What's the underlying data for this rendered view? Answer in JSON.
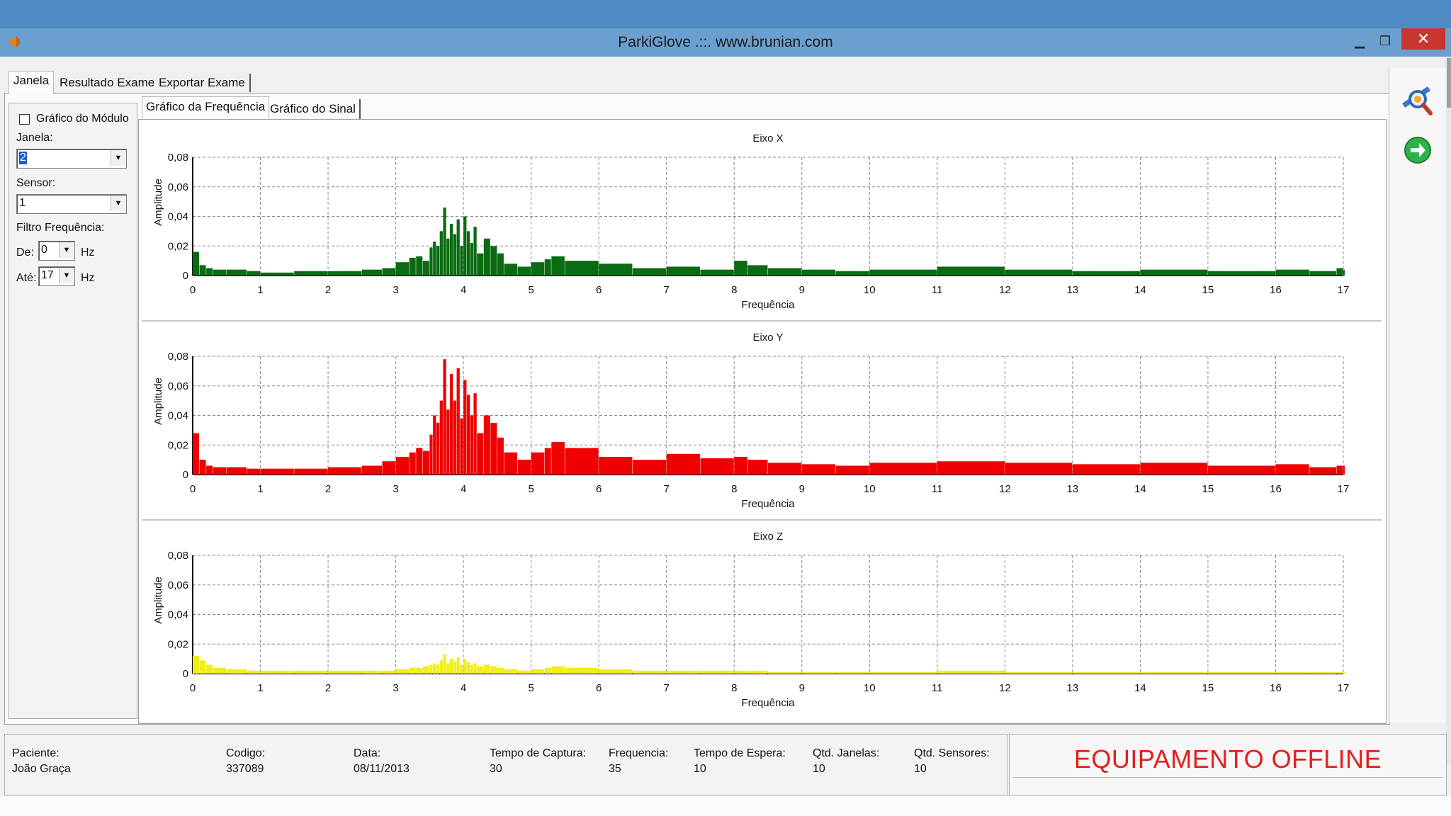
{
  "window": {
    "title": "ParkiGlove .::. www.brunian.com",
    "close_symbol": "✕",
    "min_symbol": "▁",
    "max_symbol": "❐"
  },
  "tabs": [
    {
      "label": "Janela"
    },
    {
      "label": "Resultado Exame"
    },
    {
      "label": "Exportar Exame"
    }
  ],
  "sidebar": {
    "modulo_checkbox_label": "Gráfico do Módulo",
    "janela_label": "Janela:",
    "janela_value": "2",
    "sensor_label": "Sensor:",
    "sensor_value": "1",
    "filtro_label": "Filtro Frequência:",
    "de_label": "De:",
    "de_value": "0",
    "ate_label": "Até:",
    "ate_value": "17",
    "hz_label": "Hz"
  },
  "subtabs": [
    {
      "label": "Gráfico da Frequência"
    },
    {
      "label": "Gráfico do Sinal"
    }
  ],
  "chart_data": [
    {
      "type": "bar",
      "title": "Eixo X",
      "xlabel": "Frequência",
      "ylabel": "Amplitude",
      "color": "#0b6b12",
      "xlim": [
        0,
        17
      ],
      "ylim": [
        0,
        0.08
      ],
      "x_ticks": [
        "0",
        "1",
        "2",
        "3",
        "4",
        "5",
        "6",
        "7",
        "8",
        "9",
        "10",
        "11",
        "12",
        "13",
        "14",
        "15",
        "16",
        "17"
      ],
      "y_ticks": [
        "0",
        "0,02",
        "0,04",
        "0,06",
        "0,08"
      ],
      "grid": true,
      "x": [
        0.0,
        0.1,
        0.2,
        0.3,
        0.5,
        0.8,
        1.0,
        1.5,
        2.0,
        2.5,
        2.8,
        3.0,
        3.2,
        3.3,
        3.4,
        3.5,
        3.55,
        3.6,
        3.65,
        3.7,
        3.75,
        3.8,
        3.85,
        3.9,
        3.95,
        4.0,
        4.05,
        4.1,
        4.15,
        4.2,
        4.3,
        4.4,
        4.5,
        4.6,
        4.8,
        5.0,
        5.2,
        5.3,
        5.5,
        6.0,
        6.5,
        7.0,
        7.5,
        8.0,
        8.2,
        8.5,
        9.0,
        9.5,
        10.0,
        11.0,
        12.0,
        13.0,
        14.0,
        15.0,
        16.0,
        16.5,
        16.9,
        17.0
      ],
      "y": [
        0.016,
        0.007,
        0.005,
        0.004,
        0.004,
        0.003,
        0.002,
        0.003,
        0.003,
        0.004,
        0.005,
        0.009,
        0.012,
        0.013,
        0.01,
        0.019,
        0.023,
        0.02,
        0.03,
        0.046,
        0.025,
        0.035,
        0.028,
        0.038,
        0.02,
        0.04,
        0.03,
        0.022,
        0.033,
        0.015,
        0.025,
        0.02,
        0.015,
        0.008,
        0.006,
        0.009,
        0.011,
        0.013,
        0.01,
        0.008,
        0.005,
        0.006,
        0.004,
        0.01,
        0.007,
        0.005,
        0.004,
        0.003,
        0.004,
        0.006,
        0.004,
        0.003,
        0.004,
        0.003,
        0.004,
        0.003,
        0.005,
        0.004
      ]
    },
    {
      "type": "bar",
      "title": "Eixo Y",
      "xlabel": "Frequência",
      "ylabel": "Amplitude",
      "color": "#f00000",
      "xlim": [
        0,
        17
      ],
      "ylim": [
        0,
        0.08
      ],
      "x_ticks": [
        "0",
        "1",
        "2",
        "3",
        "4",
        "5",
        "6",
        "7",
        "8",
        "9",
        "10",
        "11",
        "12",
        "13",
        "14",
        "15",
        "16",
        "17"
      ],
      "y_ticks": [
        "0",
        "0,02",
        "0,04",
        "0,06",
        "0,08"
      ],
      "grid": true,
      "x": [
        0.0,
        0.1,
        0.2,
        0.3,
        0.5,
        0.8,
        1.0,
        1.5,
        2.0,
        2.5,
        2.8,
        3.0,
        3.2,
        3.3,
        3.4,
        3.5,
        3.55,
        3.6,
        3.65,
        3.7,
        3.75,
        3.8,
        3.85,
        3.9,
        3.95,
        4.0,
        4.05,
        4.1,
        4.15,
        4.2,
        4.3,
        4.4,
        4.5,
        4.6,
        4.8,
        5.0,
        5.2,
        5.3,
        5.5,
        6.0,
        6.5,
        7.0,
        7.5,
        8.0,
        8.2,
        8.5,
        9.0,
        9.5,
        10.0,
        11.0,
        12.0,
        13.0,
        14.0,
        15.0,
        16.0,
        16.5,
        16.9,
        17.0
      ],
      "y": [
        0.028,
        0.01,
        0.006,
        0.005,
        0.005,
        0.004,
        0.004,
        0.004,
        0.005,
        0.006,
        0.009,
        0.012,
        0.015,
        0.018,
        0.016,
        0.027,
        0.04,
        0.035,
        0.05,
        0.078,
        0.044,
        0.068,
        0.05,
        0.072,
        0.038,
        0.064,
        0.054,
        0.04,
        0.055,
        0.028,
        0.04,
        0.035,
        0.025,
        0.015,
        0.01,
        0.015,
        0.018,
        0.022,
        0.018,
        0.012,
        0.01,
        0.014,
        0.011,
        0.012,
        0.01,
        0.008,
        0.007,
        0.006,
        0.008,
        0.009,
        0.008,
        0.007,
        0.008,
        0.006,
        0.007,
        0.005,
        0.006,
        0.006
      ]
    },
    {
      "type": "bar",
      "title": "Eixo Z",
      "xlabel": "Frequência",
      "ylabel": "Amplitude",
      "color": "#f2ee1c",
      "xlim": [
        0,
        17
      ],
      "ylim": [
        0,
        0.08
      ],
      "x_ticks": [
        "0",
        "1",
        "2",
        "3",
        "4",
        "5",
        "6",
        "7",
        "8",
        "9",
        "10",
        "11",
        "12",
        "13",
        "14",
        "15",
        "16",
        "17"
      ],
      "y_ticks": [
        "0",
        "0,02",
        "0,04",
        "0,06",
        "0,08"
      ],
      "grid": true,
      "x": [
        0.0,
        0.1,
        0.2,
        0.3,
        0.5,
        0.8,
        1.0,
        1.5,
        2.0,
        2.5,
        2.8,
        3.0,
        3.2,
        3.3,
        3.4,
        3.5,
        3.55,
        3.6,
        3.65,
        3.7,
        3.75,
        3.8,
        3.85,
        3.9,
        3.95,
        4.0,
        4.05,
        4.1,
        4.15,
        4.2,
        4.3,
        4.4,
        4.5,
        4.6,
        4.8,
        5.0,
        5.2,
        5.3,
        5.5,
        6.0,
        6.5,
        7.0,
        7.5,
        8.0,
        8.2,
        8.5,
        9.0,
        9.5,
        10.0,
        11.0,
        12.0,
        13.0,
        14.0,
        15.0,
        16.0,
        16.5,
        16.9,
        17.0
      ],
      "y": [
        0.012,
        0.009,
        0.006,
        0.004,
        0.003,
        0.002,
        0.002,
        0.002,
        0.002,
        0.002,
        0.002,
        0.003,
        0.004,
        0.004,
        0.005,
        0.006,
        0.007,
        0.006,
        0.009,
        0.013,
        0.007,
        0.01,
        0.008,
        0.011,
        0.006,
        0.01,
        0.008,
        0.006,
        0.007,
        0.005,
        0.006,
        0.005,
        0.004,
        0.003,
        0.002,
        0.003,
        0.004,
        0.005,
        0.004,
        0.003,
        0.002,
        0.002,
        0.002,
        0.002,
        0.002,
        0.001,
        0.001,
        0.001,
        0.001,
        0.002,
        0.001,
        0.001,
        0.001,
        0.001,
        0.001,
        0.001,
        0.001,
        0.001
      ]
    }
  ],
  "patient": {
    "paciente_label": "Paciente:",
    "paciente_value": "João Graça",
    "codigo_label": "Codigo:",
    "codigo_value": "337089",
    "data_label": "Data:",
    "data_value": "08/11/2013",
    "captura_label": "Tempo de Captura:",
    "captura_value": "30",
    "frequencia_label": "Frequencia:",
    "frequencia_value": "35",
    "espera_label": "Tempo de Espera:",
    "espera_value": "10",
    "janelas_label": "Qtd. Janelas:",
    "janelas_value": "10",
    "sensores_label": "Qtd. Sensores:",
    "sensores_value": "10"
  },
  "status": {
    "text": "EQUIPAMENTO OFFLINE",
    "color": "#e41e1e"
  },
  "icons": {
    "toolbar_search": "magnifier-icon",
    "toolbar_next": "green-arrow-icon"
  }
}
